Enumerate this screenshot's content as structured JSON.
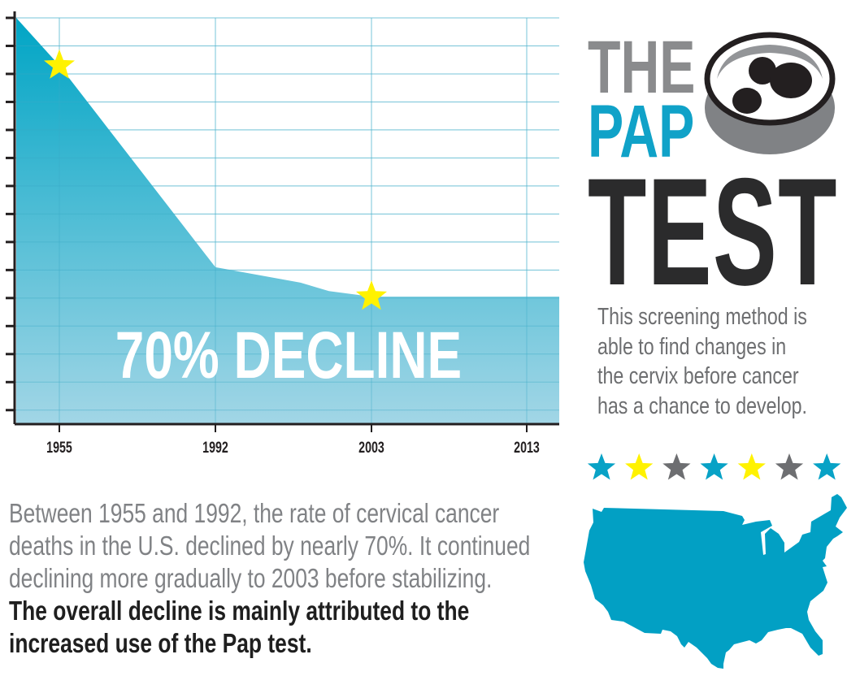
{
  "chart_data": {
    "type": "area",
    "title": "",
    "xlabel": "",
    "ylabel": "",
    "x_tick_labels": [
      "1955",
      "1992",
      "2003",
      "2013"
    ],
    "series": [
      {
        "points": [
          {
            "x": 1945,
            "y": 14.0
          },
          {
            "x": 1955,
            "y": 12.3
          },
          {
            "x": 1992,
            "y": 5.1
          },
          {
            "x": 1998,
            "y": 4.55
          },
          {
            "x": 2000,
            "y": 4.25
          },
          {
            "x": 2003,
            "y": 4.05
          },
          {
            "x": 2013,
            "y": 4.05
          },
          {
            "x": 2015,
            "y": 4.05
          }
        ]
      }
    ],
    "highlight_points": [
      1955,
      2003
    ],
    "ylim": [
      -0.5,
      14
    ],
    "y_ticks": 15,
    "grid": true,
    "annotation": "70% DECLINE",
    "colors": {
      "area_top": "#00a5c5",
      "area_bottom": "#a2d6e6",
      "grid": "#a9dbe8",
      "star": "#fff200",
      "axis": "#231f20"
    }
  },
  "title": {
    "line1": "THE",
    "line2": "PAP",
    "line3": "TEST"
  },
  "side_text": [
    "This screening method is",
    "able to find changes in",
    "the cervix before cancer",
    "has a chance to develop."
  ],
  "star_row": [
    "#08a2c6",
    "#fff200",
    "#6d6e71",
    "#08a2c6",
    "#fff200",
    "#6d6e71",
    "#08a2c6"
  ],
  "icons": {
    "dish": "petri-dish-icon",
    "map": "usa-map-icon",
    "star": "star-icon"
  },
  "colors": {
    "brand_blue": "#10a2c8",
    "gray": "#8a8b8d",
    "dark": "#2b2b2c",
    "map": "#02a0c4"
  },
  "bottom_text": {
    "regular": [
      "Between 1955 and 1992, the rate of cervical cancer",
      "deaths in the U.S. declined by nearly 70%. It continued",
      "declining more gradually to 2003 before stabilizing."
    ],
    "bold": [
      "The overall decline is mainly attributed to the",
      "increased use of the Pap test."
    ]
  }
}
